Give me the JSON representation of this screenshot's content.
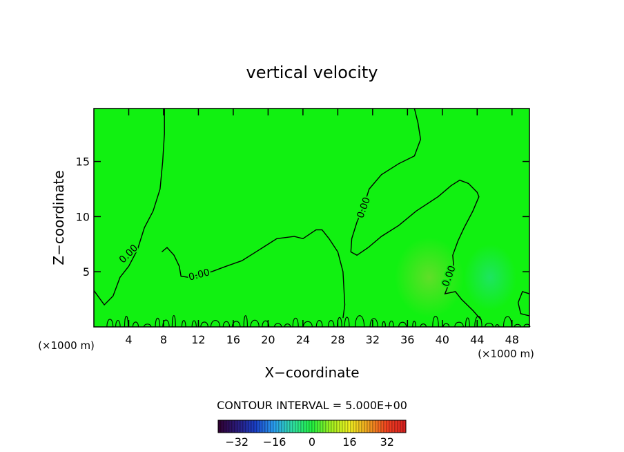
{
  "chart_data": {
    "type": "heatmap",
    "title": "vertical velocity",
    "xlabel": "X−coordinate",
    "ylabel": "Z−coordinate",
    "x_unit_left": "(×1000 m)",
    "x_unit_right": "(×1000 m)",
    "xlim": [
      0,
      50
    ],
    "ylim": [
      0,
      19.8
    ],
    "x_ticks": [
      4,
      8,
      12,
      16,
      20,
      24,
      28,
      32,
      36,
      40,
      44,
      48
    ],
    "x_tick_labels": [
      "4",
      "8",
      "12",
      "16",
      "20",
      "24",
      "28",
      "32",
      "36",
      "40",
      "44",
      "48"
    ],
    "y_ticks": [
      5,
      10,
      15
    ],
    "y_tick_labels": [
      "5",
      "10",
      "15"
    ],
    "field_color": "#11f111",
    "contour_interval_text": "CONTOUR INTERVAL = 5.000E+00",
    "contour_labels": [
      {
        "text": "0.00",
        "x": 4.0,
        "z": 6.6,
        "angle": -45
      },
      {
        "text": "0.00",
        "x": 12.1,
        "z": 4.7,
        "angle": -15
      },
      {
        "text": "0.00",
        "x": 31.0,
        "z": 10.8,
        "angle": -70
      },
      {
        "text": "0.00",
        "x": 40.8,
        "z": 4.6,
        "angle": -70
      }
    ],
    "contours": [
      [
        [
          0,
          3.3
        ],
        [
          1.2,
          2.0
        ],
        [
          2.2,
          2.8
        ],
        [
          3.0,
          4.5
        ],
        [
          4.0,
          5.5
        ],
        [
          5.0,
          7.0
        ],
        [
          5.8,
          9.0
        ],
        [
          6.8,
          10.5
        ],
        [
          7.6,
          12.5
        ],
        [
          7.9,
          15.0
        ],
        [
          8.1,
          17.5
        ],
        [
          8.1,
          19.8
        ]
      ],
      [
        [
          7.8,
          6.8
        ],
        [
          8.4,
          7.2
        ],
        [
          9.2,
          6.5
        ],
        [
          9.8,
          5.5
        ],
        [
          10.0,
          4.6
        ],
        [
          10.8,
          4.5
        ],
        [
          13.5,
          5.0
        ],
        [
          15.2,
          5.5
        ],
        [
          17.0,
          6.0
        ],
        [
          19.0,
          7.0
        ],
        [
          21.0,
          8.0
        ],
        [
          23.0,
          8.2
        ],
        [
          24.0,
          8.0
        ],
        [
          25.5,
          8.8
        ],
        [
          26.2,
          8.8
        ],
        [
          27.0,
          8.0
        ],
        [
          28.0,
          6.8
        ],
        [
          28.6,
          5.0
        ],
        [
          28.8,
          2.0
        ],
        [
          28.6,
          0.8
        ]
      ],
      [
        [
          36.8,
          19.8
        ],
        [
          37.2,
          18.5
        ],
        [
          37.5,
          17.0
        ],
        [
          36.8,
          15.5
        ],
        [
          35.0,
          14.8
        ],
        [
          33.0,
          13.8
        ],
        [
          31.6,
          12.5
        ],
        [
          31.0,
          11.0
        ],
        [
          30.2,
          9.5
        ],
        [
          29.6,
          8.0
        ],
        [
          29.5,
          6.8
        ],
        [
          30.2,
          6.5
        ],
        [
          31.5,
          7.2
        ],
        [
          33.0,
          8.2
        ],
        [
          35.0,
          9.2
        ],
        [
          37.0,
          10.5
        ],
        [
          39.5,
          11.8
        ],
        [
          41.0,
          12.8
        ],
        [
          42.0,
          13.3
        ],
        [
          43.0,
          13.0
        ],
        [
          44.0,
          12.2
        ],
        [
          44.2,
          11.8
        ],
        [
          43.5,
          10.5
        ],
        [
          42.5,
          9.0
        ],
        [
          41.8,
          7.8
        ],
        [
          41.2,
          6.5
        ],
        [
          41.3,
          5.5
        ],
        [
          40.8,
          4.0
        ],
        [
          40.3,
          3.0
        ],
        [
          41.5,
          3.2
        ],
        [
          42.2,
          2.5
        ],
        [
          43.5,
          1.5
        ],
        [
          44.5,
          0.6
        ]
      ],
      [
        [
          50.0,
          3.0
        ],
        [
          49.2,
          3.2
        ],
        [
          48.7,
          2.2
        ],
        [
          49.0,
          1.2
        ],
        [
          50.0,
          1.0
        ]
      ]
    ],
    "colorbar": {
      "ticks": [
        -32,
        -16,
        0,
        16,
        32
      ],
      "tick_labels": [
        "−32",
        "−16",
        "0",
        "16",
        "32"
      ],
      "range": [
        -40,
        40
      ],
      "stops": [
        "#300030",
        "#2a1a7a",
        "#1a40c8",
        "#2aa0f0",
        "#30e0a0",
        "#20f040",
        "#a0f020",
        "#f0f020",
        "#f0a020",
        "#f04020",
        "#d82020"
      ]
    }
  }
}
